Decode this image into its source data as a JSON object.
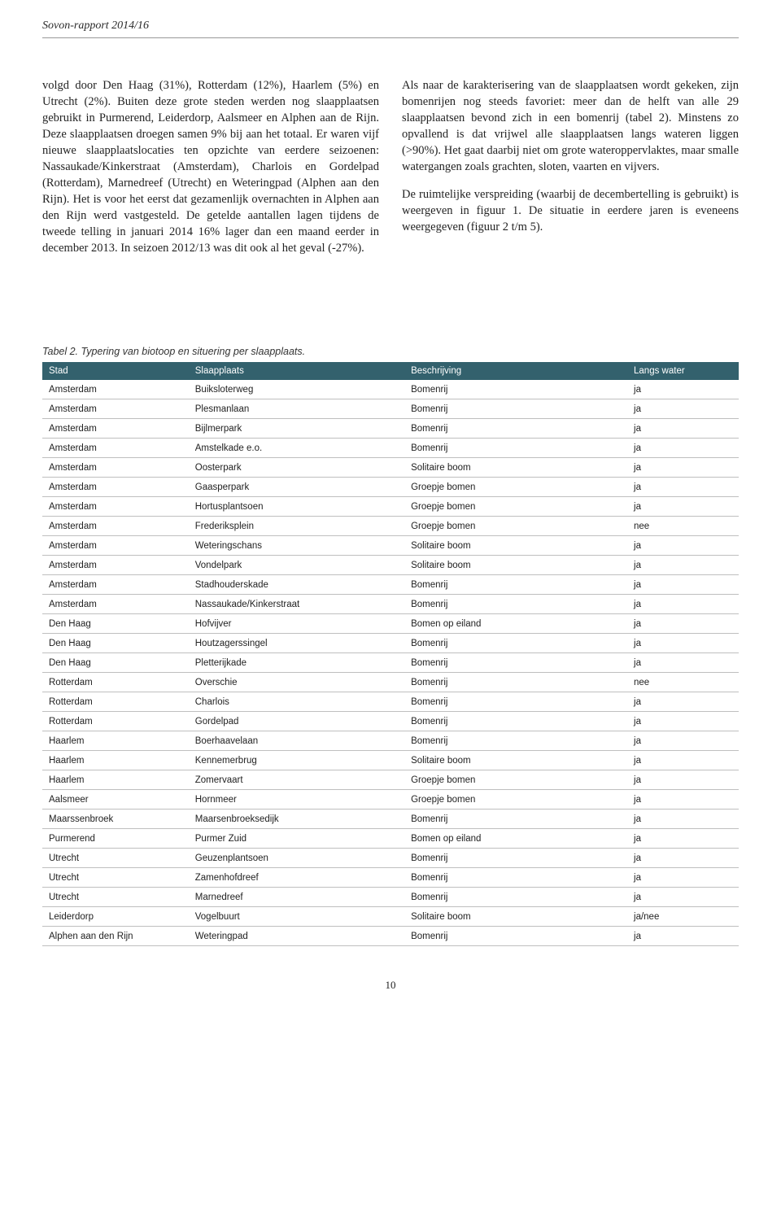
{
  "header": {
    "running": "Sovon-rapport 2014/16",
    "pageNumber": "10"
  },
  "body": {
    "left": "volgd door Den Haag (31%), Rotterdam (12%), Haarlem (5%) en Utrecht (2%). Buiten deze grote steden werden nog slaapplaatsen gebruikt in Purmerend, Leiderdorp, Aalsmeer en Alphen aan de Rijn. Deze slaapplaatsen droegen samen 9% bij aan het totaal. Er waren vijf nieuwe slaapplaatslocaties ten opzichte van eerdere seizoenen: Nassaukade/Kinkerstraat (Amsterdam), Charlois en Gordelpad (Rotterdam), Marnedreef (Utrecht) en Weteringpad (Alphen aan den Rijn). Het is voor het eerst dat gezamenlijk overnachten in Alphen aan den Rijn werd vastgesteld. De getelde aantallen lagen tijdens de tweede telling in januari 2014 16% lager dan een maand eerder in december 2013. In seizoen 2012/13 was dit ook al het geval (-27%).",
    "right": "Als naar de karakterisering van de slaapplaatsen wordt gekeken, zijn bomenrijen nog steeds favoriet: meer dan de helft van alle 29 slaapplaatsen bevond zich in een bomenrij (tabel 2). Minstens zo opvallend is dat vrijwel alle slaapplaatsen langs wateren liggen (>90%). Het gaat daarbij niet om grote wateroppervlaktes, maar smalle watergangen zoals grachten, sloten, vaarten en vijvers.\n\nDe ruimtelijke verspreiding (waarbij de decembertelling is gebruikt) is weergeven in figuur 1. De situatie in eerdere jaren is eveneens weergegeven (figuur 2 t/m 5)."
  },
  "table": {
    "caption": "Tabel 2. Typering van biotoop en situering per slaapplaats.",
    "headers": [
      "Stad",
      "Slaapplaats",
      "Beschrijving",
      "Langs water"
    ],
    "header_bg": "#33616d",
    "header_color": "#ffffff",
    "border_color": "#bfbfbf",
    "rows": [
      [
        "Amsterdam",
        "Buiksloterweg",
        "Bomenrij",
        "ja"
      ],
      [
        "Amsterdam",
        "Plesmanlaan",
        "Bomenrij",
        "ja"
      ],
      [
        "Amsterdam",
        "Bijlmerpark",
        "Bomenrij",
        "ja"
      ],
      [
        "Amsterdam",
        "Amstelkade e.o.",
        "Bomenrij",
        "ja"
      ],
      [
        "Amsterdam",
        "Oosterpark",
        "Solitaire boom",
        "ja"
      ],
      [
        "Amsterdam",
        "Gaasperpark",
        "Groepje bomen",
        "ja"
      ],
      [
        "Amsterdam",
        "Hortusplantsoen",
        "Groepje bomen",
        "ja"
      ],
      [
        "Amsterdam",
        "Frederiksplein",
        "Groepje bomen",
        "nee"
      ],
      [
        "Amsterdam",
        "Weteringschans",
        "Solitaire boom",
        "ja"
      ],
      [
        "Amsterdam",
        "Vondelpark",
        "Solitaire boom",
        "ja"
      ],
      [
        "Amsterdam",
        "Stadhouderskade",
        "Bomenrij",
        "ja"
      ],
      [
        "Amsterdam",
        "Nassaukade/Kinkerstraat",
        "Bomenrij",
        "ja"
      ],
      [
        "Den Haag",
        "Hofvijver",
        "Bomen op eiland",
        "ja"
      ],
      [
        "Den Haag",
        "Houtzagerssingel",
        "Bomenrij",
        "ja"
      ],
      [
        "Den Haag",
        "Pletterijkade",
        "Bomenrij",
        "ja"
      ],
      [
        "Rotterdam",
        "Overschie",
        "Bomenrij",
        "nee"
      ],
      [
        "Rotterdam",
        "Charlois",
        "Bomenrij",
        "ja"
      ],
      [
        "Rotterdam",
        "Gordelpad",
        "Bomenrij",
        "ja"
      ],
      [
        "Haarlem",
        "Boerhaavelaan",
        "Bomenrij",
        "ja"
      ],
      [
        "Haarlem",
        "Kennemerbrug",
        "Solitaire boom",
        "ja"
      ],
      [
        "Haarlem",
        "Zomervaart",
        "Groepje bomen",
        "ja"
      ],
      [
        "Aalsmeer",
        "Hornmeer",
        "Groepje bomen",
        "ja"
      ],
      [
        "Maarssenbroek",
        "Maarsenbroeksedijk",
        "Bomenrij",
        "ja"
      ],
      [
        "Purmerend",
        "Purmer Zuid",
        "Bomen op eiland",
        "ja"
      ],
      [
        "Utrecht",
        "Geuzenplantsoen",
        "Bomenrij",
        "ja"
      ],
      [
        "Utrecht",
        "Zamenhofdreef",
        "Bomenrij",
        "ja"
      ],
      [
        "Utrecht",
        "Marnedreef",
        "Bomenrij",
        "ja"
      ],
      [
        "Leiderdorp",
        "Vogelbuurt",
        "Solitaire boom",
        "ja/nee"
      ],
      [
        "Alphen aan den Rijn",
        "Weteringpad",
        "Bomenrij",
        "ja"
      ]
    ]
  }
}
